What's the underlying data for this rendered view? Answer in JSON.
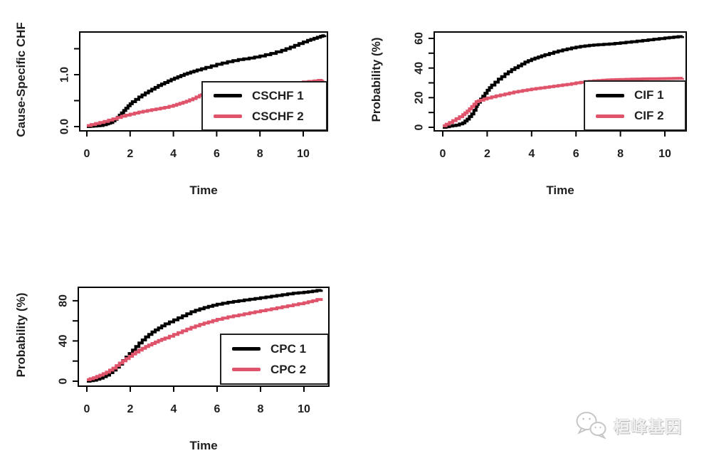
{
  "figure": {
    "background": "#ffffff"
  },
  "palette": {
    "series1": "#000000",
    "series2": "#DF536B",
    "axis_text": "#1f1f1f"
  },
  "watermark": {
    "icon": "wechat-icon",
    "text": "桓峰基因",
    "color": "#f0f0f0"
  },
  "chart_data": [
    {
      "id": "cschf",
      "type": "line",
      "step": true,
      "title": "",
      "xlabel": "Time",
      "ylabel": "Cause-Specific CHF",
      "xlim": [
        0,
        11.2
      ],
      "ylim": [
        0,
        1.82
      ],
      "grid": false,
      "legend": {
        "position": "bottom-right"
      },
      "xticks": {
        "values": [
          0,
          2,
          4,
          6,
          8,
          10
        ],
        "labels": [
          "0",
          "2",
          "4",
          "6",
          "8",
          "10"
        ]
      },
      "yticks": {
        "values": [
          0,
          0.5,
          1,
          1.5
        ],
        "labels": [
          "0.0",
          "",
          "1.0",
          ""
        ]
      },
      "series": [
        {
          "name": "CSCHF 1",
          "color": "#000000",
          "points": [
            [
              0,
              0
            ],
            [
              0.3,
              0.01
            ],
            [
              0.6,
              0.02
            ],
            [
              0.9,
              0.05
            ],
            [
              1.1,
              0.08
            ],
            [
              1.3,
              0.14
            ],
            [
              1.5,
              0.22
            ],
            [
              1.7,
              0.31
            ],
            [
              1.9,
              0.4
            ],
            [
              2.1,
              0.48
            ],
            [
              2.4,
              0.57
            ],
            [
              2.7,
              0.65
            ],
            [
              3,
              0.72
            ],
            [
              3.3,
              0.79
            ],
            [
              3.6,
              0.85
            ],
            [
              3.9,
              0.91
            ],
            [
              4.2,
              0.96
            ],
            [
              4.5,
              1.01
            ],
            [
              4.8,
              1.05
            ],
            [
              5.1,
              1.09
            ],
            [
              5.5,
              1.14
            ],
            [
              6,
              1.2
            ],
            [
              6.5,
              1.25
            ],
            [
              7,
              1.29
            ],
            [
              7.5,
              1.32
            ],
            [
              8,
              1.36
            ],
            [
              8.5,
              1.41
            ],
            [
              9,
              1.47
            ],
            [
              9.4,
              1.53
            ],
            [
              9.8,
              1.6
            ],
            [
              10.2,
              1.66
            ],
            [
              10.5,
              1.7
            ],
            [
              10.8,
              1.74
            ],
            [
              11,
              1.76
            ]
          ]
        },
        {
          "name": "CSCHF 2",
          "color": "#DF536B",
          "points": [
            [
              0,
              0.02
            ],
            [
              0.4,
              0.06
            ],
            [
              0.8,
              0.1
            ],
            [
              1.2,
              0.15
            ],
            [
              1.6,
              0.2
            ],
            [
              2,
              0.24
            ],
            [
              2.4,
              0.28
            ],
            [
              2.8,
              0.31
            ],
            [
              3.2,
              0.34
            ],
            [
              3.6,
              0.37
            ],
            [
              4,
              0.41
            ],
            [
              4.3,
              0.45
            ],
            [
              4.6,
              0.49
            ],
            [
              4.9,
              0.54
            ],
            [
              5.2,
              0.6
            ],
            [
              5.4,
              0.63
            ],
            [
              6,
              0.66
            ],
            [
              7,
              0.71
            ],
            [
              8,
              0.76
            ],
            [
              9,
              0.81
            ],
            [
              10,
              0.86
            ],
            [
              10.5,
              0.88
            ],
            [
              10.9,
              0.9
            ]
          ]
        }
      ]
    },
    {
      "id": "cif",
      "type": "line",
      "step": true,
      "title": "",
      "xlabel": "Time",
      "ylabel": "Probability (%)",
      "xlim": [
        0,
        11.2
      ],
      "ylim": [
        0,
        64
      ],
      "grid": false,
      "legend": {
        "position": "bottom-right"
      },
      "xticks": {
        "values": [
          0,
          2,
          4,
          6,
          8,
          10
        ],
        "labels": [
          "0",
          "2",
          "4",
          "6",
          "8",
          "10"
        ]
      },
      "yticks": {
        "values": [
          0,
          10,
          20,
          30,
          40,
          50,
          60
        ],
        "labels": [
          "0",
          "",
          "20",
          "",
          "40",
          "",
          "60"
        ]
      },
      "series": [
        {
          "name": "CIF 1",
          "color": "#000000",
          "points": [
            [
              0,
              0
            ],
            [
              0.3,
              0.8
            ],
            [
              0.6,
              1.5
            ],
            [
              0.9,
              3
            ],
            [
              1.1,
              5.5
            ],
            [
              1.3,
              9
            ],
            [
              1.5,
              14
            ],
            [
              1.6,
              17
            ],
            [
              1.8,
              21
            ],
            [
              2,
              25
            ],
            [
              2.2,
              28.5
            ],
            [
              2.5,
              32.5
            ],
            [
              2.8,
              36
            ],
            [
              3.1,
              39
            ],
            [
              3.4,
              41.5
            ],
            [
              3.7,
              44
            ],
            [
              4,
              46
            ],
            [
              4.3,
              47.5
            ],
            [
              4.6,
              49
            ],
            [
              5,
              50.8
            ],
            [
              5.4,
              52.3
            ],
            [
              5.8,
              53.6
            ],
            [
              6.2,
              54.6
            ],
            [
              6.6,
              55.3
            ],
            [
              7,
              55.8
            ],
            [
              7.5,
              56.3
            ],
            [
              8,
              57
            ],
            [
              8.5,
              57.8
            ],
            [
              9,
              58.6
            ],
            [
              9.5,
              59.5
            ],
            [
              10,
              60.3
            ],
            [
              10.4,
              60.9
            ],
            [
              10.8,
              61.5
            ]
          ]
        },
        {
          "name": "CIF 2",
          "color": "#DF536B",
          "points": [
            [
              0,
              1
            ],
            [
              0.3,
              3.2
            ],
            [
              0.6,
              5.8
            ],
            [
              0.9,
              8.5
            ],
            [
              1.1,
              11
            ],
            [
              1.3,
              14
            ],
            [
              1.5,
              17.3
            ],
            [
              1.7,
              18.3
            ],
            [
              2,
              19.8
            ],
            [
              2.4,
              21.2
            ],
            [
              2.8,
              22.5
            ],
            [
              3.2,
              23.8
            ],
            [
              3.6,
              24.8
            ],
            [
              4,
              25.8
            ],
            [
              4.4,
              26.6
            ],
            [
              4.8,
              27.4
            ],
            [
              5.2,
              28.2
            ],
            [
              5.6,
              29
            ],
            [
              6,
              30
            ],
            [
              6.4,
              30.8
            ],
            [
              6.8,
              31.4
            ],
            [
              7.2,
              31.8
            ],
            [
              7.6,
              32.1
            ],
            [
              8,
              32.3
            ],
            [
              8.5,
              32.5
            ],
            [
              9,
              32.7
            ],
            [
              9.5,
              32.8
            ],
            [
              10,
              32.9
            ],
            [
              10.4,
              33
            ],
            [
              10.8,
              33.2
            ]
          ]
        }
      ]
    },
    {
      "id": "cpc",
      "type": "line",
      "step": true,
      "title": "",
      "xlabel": "Time",
      "ylabel": "Probability (%)",
      "xlim": [
        0,
        11.2
      ],
      "ylim": [
        0,
        93
      ],
      "grid": false,
      "legend": {
        "position": "bottom-right"
      },
      "xticks": {
        "values": [
          0,
          2,
          4,
          6,
          8,
          10
        ],
        "labels": [
          "0",
          "2",
          "4",
          "6",
          "8",
          "10"
        ]
      },
      "yticks": {
        "values": [
          0,
          20,
          40,
          60,
          80
        ],
        "labels": [
          "0",
          "",
          "40",
          "",
          "80"
        ]
      },
      "series": [
        {
          "name": "CPC 1",
          "color": "#000000",
          "points": [
            [
              0,
              0
            ],
            [
              0.3,
              1
            ],
            [
              0.6,
              3
            ],
            [
              0.9,
              6
            ],
            [
              1.2,
              11
            ],
            [
              1.5,
              17
            ],
            [
              1.8,
              24
            ],
            [
              2.1,
              31
            ],
            [
              2.4,
              38
            ],
            [
              2.7,
              44
            ],
            [
              3,
              49
            ],
            [
              3.3,
              53
            ],
            [
              3.6,
              57
            ],
            [
              4,
              61
            ],
            [
              4.4,
              65
            ],
            [
              4.8,
              69
            ],
            [
              5.2,
              72
            ],
            [
              5.6,
              74.5
            ],
            [
              6,
              76.5
            ],
            [
              6.5,
              78.5
            ],
            [
              7,
              80
            ],
            [
              7.5,
              81.5
            ],
            [
              8,
              83
            ],
            [
              8.5,
              84.5
            ],
            [
              9,
              86
            ],
            [
              9.5,
              87.5
            ],
            [
              10,
              88.5
            ],
            [
              10.4,
              89.5
            ],
            [
              10.8,
              91
            ]
          ]
        },
        {
          "name": "CPC 2",
          "color": "#DF536B",
          "points": [
            [
              0,
              1.5
            ],
            [
              0.3,
              3.5
            ],
            [
              0.6,
              6
            ],
            [
              0.9,
              9
            ],
            [
              1.2,
              13
            ],
            [
              1.5,
              18
            ],
            [
              1.8,
              22.5
            ],
            [
              2.1,
              27
            ],
            [
              2.4,
              31
            ],
            [
              2.7,
              34.5
            ],
            [
              3,
              37.5
            ],
            [
              3.3,
              40.5
            ],
            [
              3.6,
              43
            ],
            [
              4,
              46.5
            ],
            [
              4.4,
              50
            ],
            [
              4.8,
              53.5
            ],
            [
              5.2,
              56.5
            ],
            [
              5.6,
              59
            ],
            [
              6,
              61.5
            ],
            [
              6.5,
              64
            ],
            [
              7,
              66
            ],
            [
              7.5,
              68
            ],
            [
              8,
              70
            ],
            [
              8.5,
              72
            ],
            [
              9,
              74
            ],
            [
              9.5,
              76
            ],
            [
              10,
              78
            ],
            [
              10.4,
              80
            ],
            [
              10.8,
              82.5
            ]
          ]
        }
      ]
    }
  ]
}
